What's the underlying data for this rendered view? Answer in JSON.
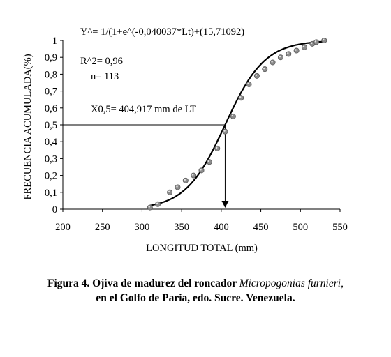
{
  "chart_data": {
    "type": "scatter",
    "title": "",
    "xlabel": "LONGITUD TOTAL (mm)",
    "ylabel": "FRECUENCIA ACUMULADA(%)",
    "xlim": [
      200,
      550
    ],
    "ylim": [
      0,
      1
    ],
    "x_ticks": [
      "200",
      "250",
      "300",
      "350",
      "400",
      "450",
      "500",
      "550"
    ],
    "y_ticks": [
      "0",
      "0,1",
      "0,2",
      "0,3",
      "0,4",
      "0,5",
      "0,6",
      "0,7",
      "0,8",
      "0,9",
      "1"
    ],
    "grid": false,
    "legend": "none",
    "annotations": {
      "equation": "Y^= 1/(1+e^(-0,040037*Lt)+(15,71092)",
      "r2": "R^2= 0,96",
      "n": "n= 113",
      "x05": "X0,5= 404,917 mm de LT"
    },
    "model": {
      "type": "logistic",
      "slope": 0.040037,
      "l50": 404.917
    },
    "reference": {
      "x": 404.917,
      "y": 0.5
    },
    "series": [
      {
        "style": "points",
        "color": "#8c8c8c",
        "x": [
          310,
          320,
          335,
          345,
          355,
          365,
          375,
          385,
          395,
          405,
          415,
          425,
          435,
          445,
          455,
          465,
          475,
          485,
          495,
          505,
          515,
          520,
          530
        ],
        "y": [
          0.01,
          0.03,
          0.1,
          0.13,
          0.17,
          0.2,
          0.23,
          0.28,
          0.36,
          0.46,
          0.55,
          0.66,
          0.74,
          0.79,
          0.83,
          0.87,
          0.9,
          0.92,
          0.94,
          0.96,
          0.98,
          0.99,
          1.0
        ]
      },
      {
        "style": "fitted-curve",
        "color": "#000000",
        "x_range": [
          310,
          530
        ]
      }
    ]
  },
  "caption": {
    "line1_prefix": "Figura  4.  Ojiva de  madurez del  roncador ",
    "line1_species": "Micropogonias  furnieri,",
    "line2": "en el Golfo de Paria, edo. Sucre. Venezuela."
  }
}
